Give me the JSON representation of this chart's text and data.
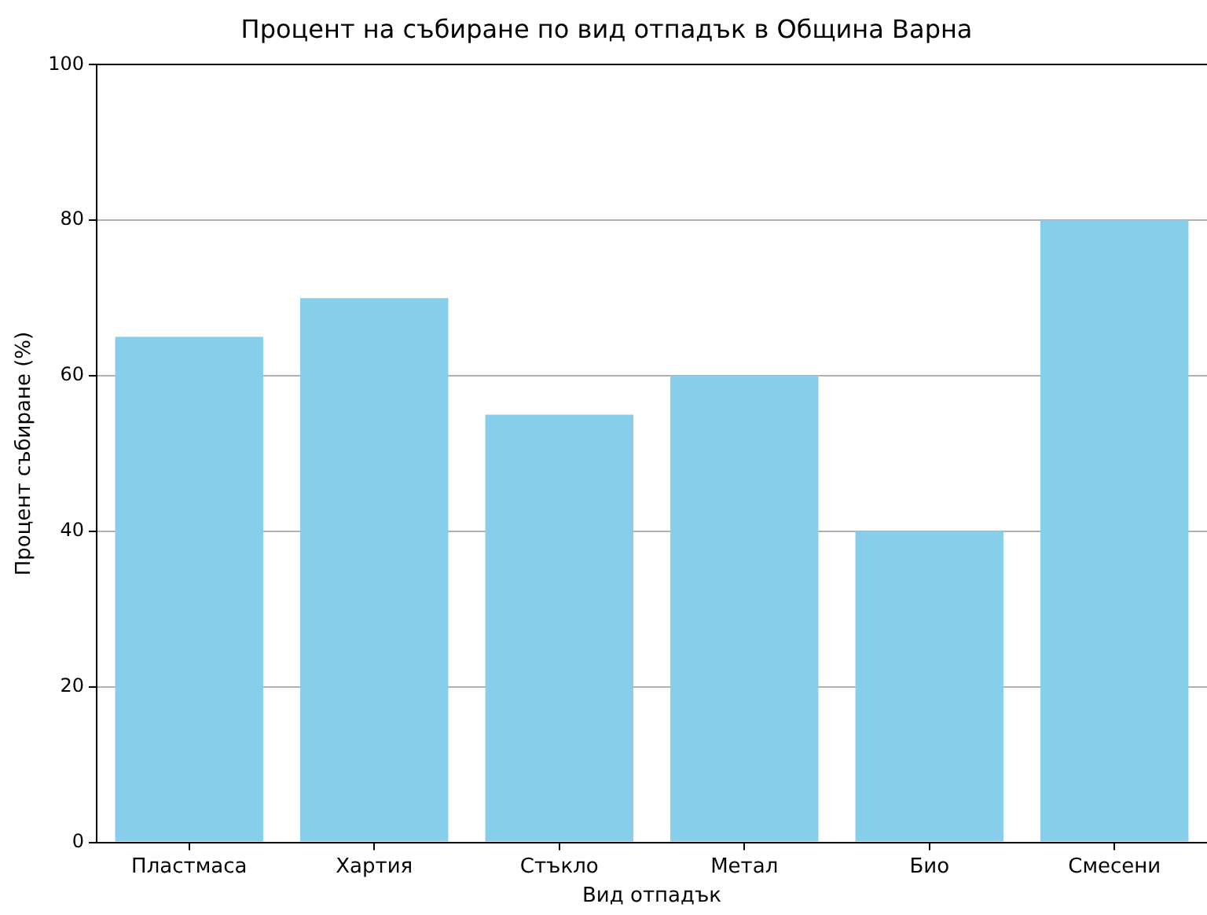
{
  "chart_data": {
    "type": "bar",
    "title": "Процент на събиране по вид отпадък в Община Варна",
    "xlabel": "Вид отпадък",
    "ylabel": "Процент събиране (%)",
    "categories": [
      "Пластмаса",
      "Хартия",
      "Стъкло",
      "Метал",
      "Био",
      "Смесени"
    ],
    "values": [
      65,
      70,
      55,
      60,
      40,
      80
    ],
    "color": "#87ceeb",
    "ylim": [
      0,
      100
    ],
    "yticks": [
      0,
      20,
      40,
      60,
      80,
      100
    ],
    "grid": "y",
    "legend": false
  }
}
